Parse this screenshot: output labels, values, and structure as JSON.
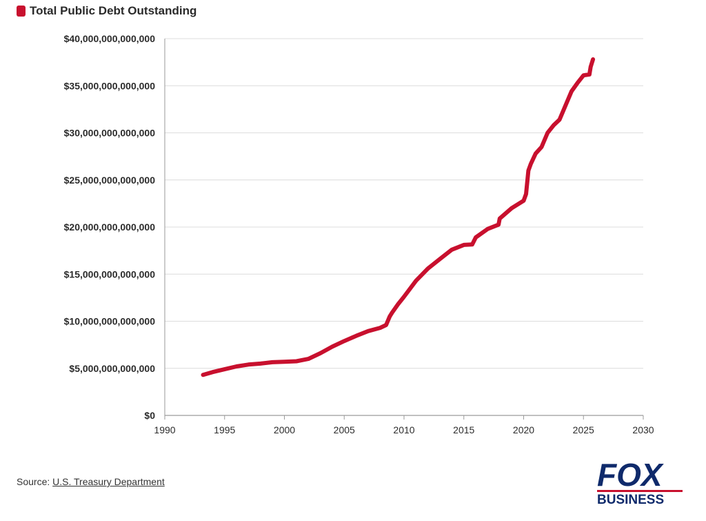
{
  "legend": {
    "label": "Total Public Debt Outstanding",
    "color": "#c8102e"
  },
  "source": {
    "prefix": "Source: ",
    "link_text": "U.S. Treasury Department"
  },
  "logo": {
    "primary": "FOX",
    "secondary": "BUSINESS",
    "color": "#0f2a6b",
    "accent": "#c8102e"
  },
  "chart_data": {
    "type": "line",
    "title": "Total Public Debt Outstanding",
    "xlabel": "",
    "ylabel": "",
    "xlim": [
      1990,
      2030
    ],
    "ylim": [
      0,
      40000000000000
    ],
    "grid": true,
    "legend_position": "top-left",
    "x_ticks": [
      1990,
      1995,
      2000,
      2005,
      2010,
      2015,
      2020,
      2025,
      2030
    ],
    "x_tick_labels": [
      "1990",
      "1995",
      "2000",
      "2005",
      "2010",
      "2015",
      "2020",
      "2025",
      "2030"
    ],
    "y_ticks": [
      0,
      5000000000000,
      10000000000000,
      15000000000000,
      20000000000000,
      25000000000000,
      30000000000000,
      35000000000000,
      40000000000000
    ],
    "y_tick_labels": [
      "$0",
      "$5,000,000,000,000",
      "$10,000,000,000,000",
      "$15,000,000,000,000",
      "$20,000,000,000,000",
      "$25,000,000,000,000",
      "$30,000,000,000,000",
      "$35,000,000,000,000",
      "$40,000,000,000,000"
    ],
    "series": [
      {
        "name": "Total Public Debt Outstanding",
        "color": "#c8102e",
        "x": [
          1993.2,
          1994,
          1995,
          1996,
          1997,
          1998,
          1999,
          2000,
          2001,
          2002,
          2003,
          2004,
          2005,
          2006,
          2007,
          2008,
          2008.5,
          2008.8,
          2009,
          2009.5,
          2010,
          2011,
          2012,
          2013,
          2014,
          2015,
          2015.7,
          2016,
          2017,
          2017.9,
          2018,
          2019,
          2020,
          2020.2,
          2020.4,
          2020.6,
          2021,
          2021.5,
          2022,
          2022.5,
          2023,
          2023.5,
          2024,
          2024.5,
          2025,
          2025.5,
          2025.6,
          2025.8
        ],
        "y": [
          4300000000000,
          4600000000000,
          4900000000000,
          5200000000000,
          5400000000000,
          5500000000000,
          5650000000000,
          5700000000000,
          5750000000000,
          6000000000000,
          6600000000000,
          7300000000000,
          7900000000000,
          8450000000000,
          8950000000000,
          9300000000000,
          9600000000000,
          10500000000000,
          10900000000000,
          11800000000000,
          12600000000000,
          14300000000000,
          15600000000000,
          16600000000000,
          17600000000000,
          18100000000000,
          18150000000000,
          18900000000000,
          19800000000000,
          20250000000000,
          20900000000000,
          22000000000000,
          22800000000000,
          23500000000000,
          26000000000000,
          26700000000000,
          27800000000000,
          28500000000000,
          30000000000000,
          30800000000000,
          31400000000000,
          32900000000000,
          34400000000000,
          35300000000000,
          36100000000000,
          36200000000000,
          37000000000000,
          37800000000000
        ]
      }
    ]
  }
}
